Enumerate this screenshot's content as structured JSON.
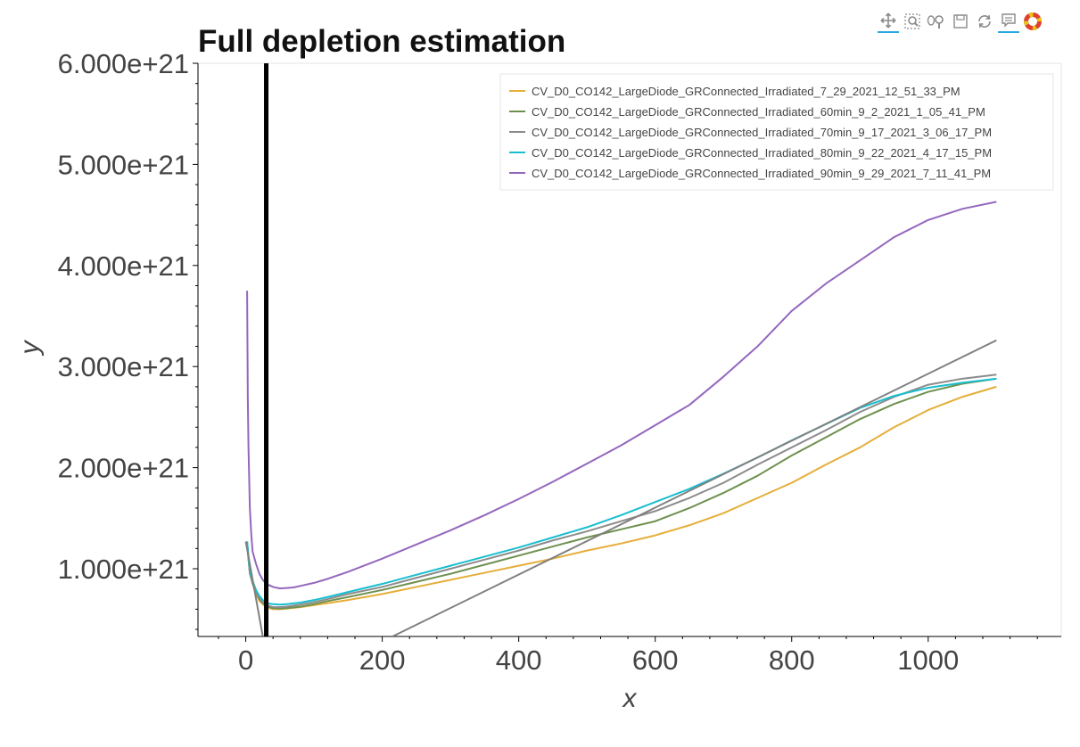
{
  "toolbar": {
    "tools": [
      "pan",
      "box zoom",
      "wheel zoom",
      "save",
      "reset",
      "hover",
      "bokeh logo"
    ]
  },
  "chart_data": {
    "type": "line",
    "title": "Full depletion estimation",
    "xlabel": "x",
    "ylabel": "y",
    "xlim": [
      -70,
      1195
    ],
    "ylim": [
      3.3e+20,
      6e+21
    ],
    "x_ticks": [
      0,
      200,
      400,
      600,
      800,
      1000
    ],
    "x_tick_labels": [
      "0",
      "200",
      "400",
      "600",
      "800",
      "1000"
    ],
    "y_ticks": [
      1e+21,
      2e+21,
      3e+21,
      4e+21,
      5e+21,
      6e+21
    ],
    "y_tick_labels": [
      "1.000e+21",
      "2.000e+21",
      "3.000e+21",
      "4.000e+21",
      "5.000e+21",
      "6.000e+21"
    ],
    "grid": false,
    "legend_position": "top-right",
    "series": [
      {
        "name": "CV_D0_CO142_LargeDiode_GRConnected_Irradiated_7_29_2021_12_51_33_PM",
        "color": "#e5ae38",
        "x": [
          2,
          4,
          6,
          10,
          15,
          20,
          25,
          30,
          40,
          50,
          60,
          80,
          100,
          120,
          150,
          200,
          250,
          300,
          350,
          400,
          450,
          500,
          550,
          600,
          650,
          700,
          750,
          800,
          850,
          900,
          950,
          1000,
          1050,
          1100
        ],
        "y": [
          1.26e+21,
          1.1e+21,
          9.5e+20,
          8.5e+20,
          7.5e+20,
          6.8e+20,
          6.5e+20,
          6.2e+20,
          6e+20,
          6e+20,
          6.05e+20,
          6.2e+20,
          6.4e+20,
          6.6e+20,
          6.9e+20,
          7.5e+20,
          8.2e+20,
          8.9e+20,
          9.6e+20,
          1.03e+21,
          1.1e+21,
          1.18e+21,
          1.25e+21,
          1.33e+21,
          1.43e+21,
          1.55e+21,
          1.7e+21,
          1.85e+21,
          2.03e+21,
          2.2e+21,
          2.4e+21,
          2.57e+21,
          2.7e+21,
          2.8e+21
        ]
      },
      {
        "name": "CV_D0_CO142_LargeDiode_GRConnected_Irradiated_60min_9_2_2021_1_05_41_PM",
        "color": "#6d904f",
        "x": [
          2,
          4,
          6,
          10,
          15,
          20,
          25,
          30,
          40,
          50,
          60,
          80,
          100,
          120,
          150,
          200,
          250,
          300,
          350,
          400,
          450,
          500,
          550,
          600,
          650,
          700,
          750,
          800,
          850,
          900,
          950,
          1000,
          1050,
          1100
        ],
        "y": [
          1.27e+21,
          1.1e+21,
          9.6e+20,
          8.6e+20,
          7.7e+20,
          7e+20,
          6.6e+20,
          6.3e+20,
          6.1e+20,
          6.05e+20,
          6.1e+20,
          6.25e+20,
          6.5e+20,
          6.8e+20,
          7.2e+20,
          7.9e+20,
          8.7e+20,
          9.5e+20,
          1.04e+21,
          1.13e+21,
          1.22e+21,
          1.31e+21,
          1.39e+21,
          1.47e+21,
          1.6e+21,
          1.75e+21,
          1.92e+21,
          2.12e+21,
          2.3e+21,
          2.48e+21,
          2.63e+21,
          2.75e+21,
          2.83e+21,
          2.88e+21
        ]
      },
      {
        "name": "CV_D0_CO142_LargeDiode_GRConnected_Irradiated_70min_9_17_2021_3_06_17_PM",
        "color": "#8b8b8b",
        "x": [
          2,
          4,
          6,
          10,
          15,
          20,
          25,
          30,
          40,
          50,
          60,
          80,
          100,
          120,
          150,
          200,
          250,
          300,
          350,
          400,
          450,
          500,
          550,
          600,
          650,
          700,
          750,
          800,
          850,
          900,
          950,
          1000,
          1050,
          1100
        ],
        "y": [
          1.26e+21,
          1.1e+21,
          9.6e+20,
          8.6e+20,
          7.7e+20,
          7.1e+20,
          6.7e+20,
          6.4e+20,
          6.2e+20,
          6.2e+20,
          6.25e+20,
          6.45e+20,
          6.7e+20,
          7e+20,
          7.5e+20,
          8.2e+20,
          9.1e+20,
          1e+21,
          1.09e+21,
          1.18e+21,
          1.28e+21,
          1.37e+21,
          1.47e+21,
          1.57e+21,
          1.7e+21,
          1.85e+21,
          2.03e+21,
          2.2e+21,
          2.37e+21,
          2.55e+21,
          2.7e+21,
          2.82e+21,
          2.88e+21,
          2.92e+21
        ]
      },
      {
        "name": "CV_D0_CO142_LargeDiode_GRConnected_Irradiated_80min_9_22_2021_4_17_15_PM",
        "color": "#17becf",
        "x": [
          2,
          4,
          6,
          10,
          15,
          20,
          25,
          30,
          40,
          50,
          60,
          80,
          100,
          120,
          150,
          200,
          250,
          300,
          350,
          400,
          450,
          500,
          550,
          600,
          650,
          700,
          750,
          800,
          850,
          900,
          950,
          1000,
          1050,
          1100
        ],
        "y": [
          1.27e+21,
          1.12e+21,
          9.8e+20,
          8.8e+20,
          7.9e+20,
          7.3e+20,
          6.9e+20,
          6.6e+20,
          6.5e+20,
          6.45e+20,
          6.5e+20,
          6.65e+20,
          6.9e+20,
          7.2e+20,
          7.7e+20,
          8.5e+20,
          9.4e+20,
          1.03e+21,
          1.12e+21,
          1.21e+21,
          1.31e+21,
          1.41e+21,
          1.53e+21,
          1.66e+21,
          1.79e+21,
          1.94e+21,
          2.1e+21,
          2.27e+21,
          2.43e+21,
          2.59e+21,
          2.71e+21,
          2.79e+21,
          2.84e+21,
          2.88e+21
        ]
      },
      {
        "name": "CV_D0_CO142_LargeDiode_GRConnected_Irradiated_90min_9_29_2021_7_11_41_PM",
        "color": "#9467bd",
        "x": [
          2,
          3,
          4,
          6,
          8,
          10,
          15,
          20,
          25,
          30,
          40,
          50,
          60,
          70,
          80,
          100,
          120,
          150,
          200,
          250,
          300,
          350,
          400,
          450,
          500,
          550,
          600,
          650,
          700,
          750,
          800,
          850,
          900,
          950,
          1000,
          1050,
          1100
        ],
        "y": [
          3.75e+21,
          2.7e+21,
          2.2e+21,
          1.6e+21,
          1.35e+21,
          1.17e+21,
          1.05e+21,
          9.5e+20,
          8.9e+20,
          8.5e+20,
          8.2e+20,
          8.05e+20,
          8.1e+20,
          8.15e+20,
          8.3e+20,
          8.6e+20,
          9e+20,
          9.7e+20,
          1.1e+21,
          1.24e+21,
          1.38e+21,
          1.53e+21,
          1.69e+21,
          1.86e+21,
          2.04e+21,
          2.22e+21,
          2.42e+21,
          2.62e+21,
          2.9e+21,
          3.2e+21,
          3.55e+21,
          3.82e+21,
          4.05e+21,
          4.28e+21,
          4.45e+21,
          4.56e+21,
          4.63e+21
        ]
      }
    ],
    "fit_lines": [
      {
        "color": "#808080",
        "x": [
          0,
          25
        ],
        "y": [
          1.27e+21,
          3.3e+20
        ]
      },
      {
        "color": "#808080",
        "x": [
          215,
          1100
        ],
        "y": [
          3.3e+20,
          3.26e+21
        ]
      }
    ],
    "vertical_line": {
      "x": 30,
      "color": "#000000"
    }
  }
}
